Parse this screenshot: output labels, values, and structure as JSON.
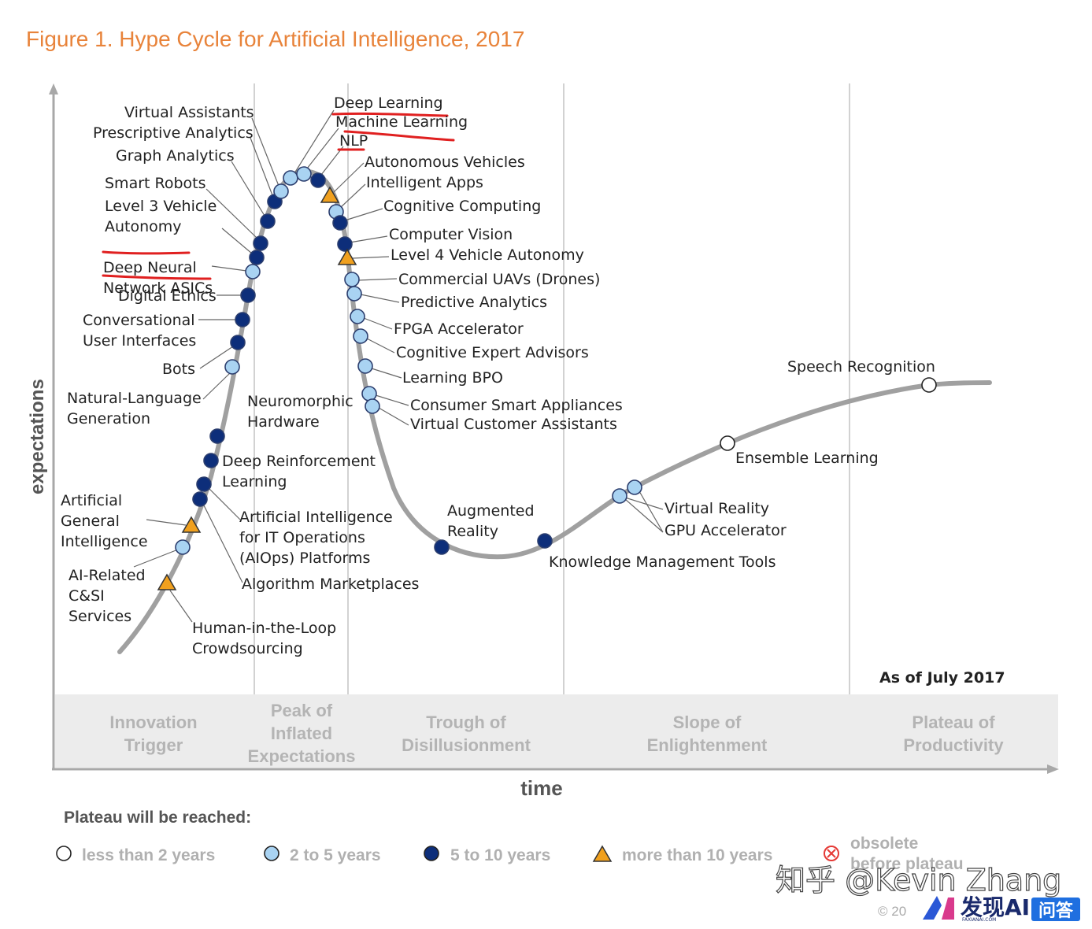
{
  "chart_data": {
    "type": "hype-cycle",
    "title": "Figure 1. Hype Cycle for Artificial Intelligence, 2017",
    "xlabel": "time",
    "ylabel": "expectations",
    "as_of": "As of July 2017",
    "phases": [
      {
        "id": "innovation",
        "lines": [
          "Innovation",
          "Trigger"
        ]
      },
      {
        "id": "peak",
        "lines": [
          "Peak of",
          "Inflated",
          "Expectations"
        ]
      },
      {
        "id": "trough",
        "lines": [
          "Trough of",
          "Disillusionment"
        ]
      },
      {
        "id": "slope",
        "lines": [
          "Slope of",
          "Enlightenment"
        ]
      },
      {
        "id": "plateau",
        "lines": [
          "Plateau of",
          "Productivity"
        ]
      }
    ],
    "legend": {
      "heading": "Plateau will be reached:",
      "items": [
        {
          "key": "lt2",
          "label": "less than 2 years",
          "marker": "circle-white"
        },
        {
          "key": "2to5",
          "label": "2 to 5 years",
          "marker": "circle-light"
        },
        {
          "key": "5to10",
          "label": "5 to 10 years",
          "marker": "circle-dark"
        },
        {
          "key": "gt10",
          "label": "more than 10 years",
          "marker": "triangle"
        },
        {
          "key": "obsolete",
          "label": "obsolete",
          "label2": "before plateau",
          "marker": "crossed-circle"
        }
      ]
    },
    "technologies": [
      {
        "name": "Human-in-the-Loop Crowdsourcing",
        "lines": [
          "Human-in-the-Loop",
          "Crowdsourcing"
        ],
        "category": "gt10",
        "phase": "innovation"
      },
      {
        "name": "AI-Related C&SI Services",
        "lines": [
          "AI-Related",
          "C&SI",
          "Services"
        ],
        "category": "2to5",
        "phase": "innovation"
      },
      {
        "name": "Artificial General Intelligence",
        "lines": [
          "Artificial",
          "General",
          "Intelligence"
        ],
        "category": "gt10",
        "phase": "innovation"
      },
      {
        "name": "Algorithm Marketplaces",
        "lines": [
          "Algorithm Marketplaces"
        ],
        "category": "5to10",
        "phase": "innovation"
      },
      {
        "name": "Artificial Intelligence for IT Operations (AIOps) Platforms",
        "lines": [
          "Artificial Intelligence",
          "for IT Operations",
          "(AIOps) Platforms"
        ],
        "category": "5to10",
        "phase": "innovation"
      },
      {
        "name": "Deep Reinforcement Learning",
        "lines": [
          "Deep Reinforcement",
          "Learning"
        ],
        "category": "5to10",
        "phase": "innovation"
      },
      {
        "name": "Neuromorphic Hardware",
        "lines": [
          "Neuromorphic",
          "Hardware"
        ],
        "category": "5to10",
        "phase": "innovation"
      },
      {
        "name": "Natural-Language Generation",
        "lines": [
          "Natural-Language",
          "Generation"
        ],
        "category": "2to5",
        "phase": "innovation"
      },
      {
        "name": "Bots",
        "lines": [
          "Bots"
        ],
        "category": "5to10",
        "phase": "innovation"
      },
      {
        "name": "Conversational User Interfaces",
        "lines": [
          "Conversational",
          "User Interfaces"
        ],
        "category": "5to10",
        "phase": "innovation"
      },
      {
        "name": "Digital Ethics",
        "lines": [
          "Digital Ethics"
        ],
        "category": "5to10",
        "phase": "innovation"
      },
      {
        "name": "Deep Neural Network ASICs",
        "lines": [
          "Deep Neural",
          "Network ASICs"
        ],
        "category": "2to5",
        "phase": "innovation",
        "highlighted": true
      },
      {
        "name": "Level 3 Vehicle Autonomy",
        "lines": [
          "Level 3 Vehicle",
          "Autonomy"
        ],
        "category": "5to10",
        "phase": "peak"
      },
      {
        "name": "Smart Robots",
        "lines": [
          "Smart Robots"
        ],
        "category": "5to10",
        "phase": "peak"
      },
      {
        "name": "Graph Analytics",
        "lines": [
          "Graph Analytics"
        ],
        "category": "5to10",
        "phase": "peak"
      },
      {
        "name": "Prescriptive Analytics",
        "lines": [
          "Prescriptive Analytics"
        ],
        "category": "5to10",
        "phase": "peak"
      },
      {
        "name": "Virtual Assistants",
        "lines": [
          "Virtual Assistants"
        ],
        "category": "2to5",
        "phase": "peak"
      },
      {
        "name": "Deep Learning",
        "lines": [
          "Deep Learning"
        ],
        "category": "2to5",
        "phase": "peak",
        "highlighted": true
      },
      {
        "name": "Machine Learning",
        "lines": [
          "Machine Learning"
        ],
        "category": "2to5",
        "phase": "peak",
        "highlighted": true
      },
      {
        "name": "NLP",
        "lines": [
          "NLP"
        ],
        "category": "5to10",
        "phase": "peak",
        "highlighted": true
      },
      {
        "name": "Autonomous Vehicles",
        "lines": [
          "Autonomous Vehicles"
        ],
        "category": "gt10",
        "phase": "peak"
      },
      {
        "name": "Intelligent Apps",
        "lines": [
          "Intelligent Apps"
        ],
        "category": "2to5",
        "phase": "peak"
      },
      {
        "name": "Cognitive Computing",
        "lines": [
          "Cognitive Computing"
        ],
        "category": "5to10",
        "phase": "peak"
      },
      {
        "name": "Computer Vision",
        "lines": [
          "Computer Vision"
        ],
        "category": "5to10",
        "phase": "peak"
      },
      {
        "name": "Level 4 Vehicle Autonomy",
        "lines": [
          "Level 4 Vehicle Autonomy"
        ],
        "category": "gt10",
        "phase": "peak"
      },
      {
        "name": "Commercial UAVs (Drones)",
        "lines": [
          "Commercial UAVs (Drones)"
        ],
        "category": "2to5",
        "phase": "trough"
      },
      {
        "name": "Predictive Analytics",
        "lines": [
          "Predictive Analytics"
        ],
        "category": "2to5",
        "phase": "trough"
      },
      {
        "name": "FPGA Accelerator",
        "lines": [
          "FPGA Accelerator"
        ],
        "category": "2to5",
        "phase": "trough"
      },
      {
        "name": "Cognitive Expert Advisors",
        "lines": [
          "Cognitive Expert Advisors"
        ],
        "category": "2to5",
        "phase": "trough"
      },
      {
        "name": "Learning BPO",
        "lines": [
          "Learning BPO"
        ],
        "category": "2to5",
        "phase": "trough"
      },
      {
        "name": "Consumer Smart Appliances",
        "lines": [
          "Consumer Smart Appliances"
        ],
        "category": "2to5",
        "phase": "trough"
      },
      {
        "name": "Virtual Customer Assistants",
        "lines": [
          "Virtual Customer Assistants"
        ],
        "category": "2to5",
        "phase": "trough"
      },
      {
        "name": "Augmented Reality",
        "lines": [
          "Augmented",
          "Reality"
        ],
        "category": "5to10",
        "phase": "trough"
      },
      {
        "name": "Knowledge Management Tools",
        "lines": [
          "Knowledge Management Tools"
        ],
        "category": "5to10",
        "phase": "trough"
      },
      {
        "name": "Virtual Reality",
        "lines": [
          "Virtual Reality"
        ],
        "category": "2to5",
        "phase": "slope"
      },
      {
        "name": "GPU Accelerator",
        "lines": [
          "GPU Accelerator"
        ],
        "category": "2to5",
        "phase": "slope"
      },
      {
        "name": "Ensemble Learning",
        "lines": [
          "Ensemble Learning"
        ],
        "category": "lt2",
        "phase": "slope"
      },
      {
        "name": "Speech Recognition",
        "lines": [
          "Speech Recognition"
        ],
        "category": "lt2",
        "phase": "plateau"
      }
    ]
  },
  "marker_colors": {
    "lt2": "#ffffff",
    "2to5": "#a9d3f2",
    "5to10": "#0d2e7a",
    "gt10": "#f0a01e",
    "obsolete": "#e53935"
  },
  "theme": {
    "title_color": "#e8833a",
    "curve_color": "#a0a0a0",
    "phase_band_color": "#ececec",
    "highlight_underline": "#e02020"
  },
  "copyright": "© 20",
  "watermark": {
    "text": "知乎 @Kevin Zhang",
    "brand": "发现AI",
    "brand_sub": "FAXIANAI.COM",
    "qa": "问答"
  }
}
